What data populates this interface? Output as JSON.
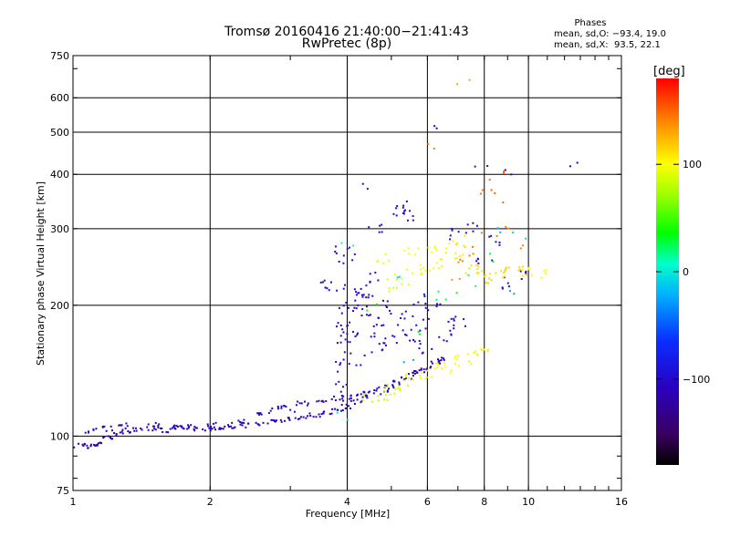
{
  "header": {
    "title_line1": "Tromsø 20160416 21:40:00−21:41:43",
    "title_line2": "RwPretec (8p)",
    "phases_title": "Phases",
    "phases_o": "mean, sd,O: −93.4, 19.0",
    "phases_x": "mean, sd,X:  93.5, 22.1"
  },
  "colorbar": {
    "unit": "[deg]",
    "ticks": [
      "100",
      "0",
      "−100"
    ],
    "tick_values": [
      100,
      0,
      -100
    ],
    "range": [
      -180,
      180
    ]
  },
  "chart_data": {
    "type": "scatter",
    "title": "Tromsø 20160416 21:40:00−21:41:43",
    "subtitle": "RwPretec (8p)",
    "xlabel": "Frequency [MHz]",
    "ylabel": "Stationary phase Virtual Height [km]",
    "xscale": "log",
    "yscale": "log",
    "xlim": [
      1,
      16
    ],
    "ylim": [
      75,
      750
    ],
    "xticks": [
      1,
      2,
      4,
      6,
      8,
      10,
      16
    ],
    "xtick_labels": [
      "1",
      "2",
      "4",
      "6",
      "8",
      "10",
      "16"
    ],
    "yticks": [
      75,
      100,
      200,
      300,
      400,
      500,
      600,
      750
    ],
    "ytick_labels": [
      "75",
      "100",
      "200",
      "300",
      "400",
      "500",
      "600",
      "750"
    ],
    "grid": true,
    "color_dimension": "phase [deg]",
    "series": [
      {
        "points": [
          [
            1.0,
            94,
            -110
          ],
          [
            1.05,
            95,
            -110
          ],
          [
            1.1,
            95,
            -110
          ],
          [
            1.15,
            96,
            -110
          ],
          [
            1.2,
            99,
            -110
          ],
          [
            1.25,
            101,
            -110
          ],
          [
            1.3,
            103,
            -110
          ],
          [
            1.4,
            104,
            -110
          ],
          [
            1.5,
            104,
            -110
          ],
          [
            1.6,
            103,
            -110
          ],
          [
            1.7,
            104,
            -110
          ],
          [
            1.8,
            105,
            -110
          ],
          [
            1.9,
            104,
            -110
          ],
          [
            2.0,
            104,
            -110
          ],
          [
            2.1,
            105,
            -110
          ],
          [
            2.2,
            105,
            -110
          ],
          [
            2.4,
            106,
            -110
          ],
          [
            2.6,
            107,
            -110
          ],
          [
            2.8,
            108,
            -110
          ],
          [
            3.0,
            109,
            -110
          ],
          [
            3.2,
            110,
            -110
          ],
          [
            3.4,
            112,
            -110
          ],
          [
            3.6,
            113,
            -110
          ],
          [
            3.8,
            115,
            -110
          ],
          [
            4.0,
            117,
            -110
          ],
          [
            4.2,
            120,
            -110
          ],
          [
            4.4,
            123,
            -110
          ],
          [
            4.6,
            126,
            -110
          ],
          [
            4.8,
            128,
            -110
          ],
          [
            5.0,
            130,
            -110
          ],
          [
            5.2,
            133,
            -110
          ],
          [
            5.4,
            136,
            -110
          ],
          [
            5.6,
            139,
            -110
          ],
          [
            5.8,
            141,
            -110
          ],
          [
            6.0,
            143,
            -110
          ],
          [
            6.2,
            148,
            -110
          ],
          [
            6.5,
            150,
            -110
          ]
        ]
      },
      {
        "points": [
          [
            1.1,
            103,
            -105
          ],
          [
            1.2,
            104,
            -105
          ],
          [
            1.3,
            106,
            -105
          ],
          [
            1.5,
            106,
            -105
          ],
          [
            1.7,
            105,
            -105
          ],
          [
            2.0,
            106,
            -105
          ],
          [
            2.3,
            108,
            -105
          ],
          [
            2.6,
            112,
            -105
          ],
          [
            2.9,
            116,
            -105
          ],
          [
            3.2,
            119,
            -105
          ],
          [
            3.5,
            121,
            -105
          ],
          [
            3.8,
            122,
            -105
          ],
          [
            4.0,
            123,
            -105
          ],
          [
            4.3,
            125,
            -105
          ]
        ]
      },
      {
        "points": [
          [
            3.9,
            130,
            -100
          ],
          [
            3.9,
            145,
            -100
          ],
          [
            3.9,
            160,
            -100
          ],
          [
            3.9,
            175,
            -100
          ],
          [
            3.95,
            185,
            -100
          ],
          [
            4.0,
            195,
            -100
          ],
          [
            4.1,
            200,
            -100
          ],
          [
            4.1,
            170,
            -100
          ],
          [
            4.2,
            210,
            -100
          ],
          [
            4.2,
            150,
            -100
          ],
          [
            4.3,
            215,
            -100
          ],
          [
            4.4,
            190,
            -100
          ],
          [
            4.5,
            205,
            -100
          ],
          [
            4.6,
            175,
            -100
          ],
          [
            4.7,
            160,
            -100
          ],
          [
            4.8,
            185,
            -100
          ],
          [
            4.9,
            200,
            -100
          ],
          [
            5.0,
            165,
            -100
          ],
          [
            5.2,
            175,
            -100
          ],
          [
            5.4,
            190,
            -100
          ],
          [
            5.6,
            170,
            -100
          ],
          [
            5.8,
            180,
            -100
          ],
          [
            6.0,
            160,
            -100
          ],
          [
            6.2,
            195,
            -100
          ],
          [
            6.5,
            170,
            -100
          ],
          [
            7.0,
            180,
            -100
          ],
          [
            5.2,
            330,
            -95
          ],
          [
            5.3,
            340,
            -95
          ],
          [
            5.4,
            320,
            -95
          ],
          [
            3.9,
            265,
            -95
          ],
          [
            4.0,
            255,
            -95
          ],
          [
            3.8,
            222,
            -95
          ],
          [
            3.5,
            222,
            -95
          ],
          [
            4.6,
            300,
            -95
          ],
          [
            6.8,
            290,
            -95
          ],
          [
            7.5,
            300,
            -95
          ],
          [
            8.0,
            250,
            -95
          ],
          [
            9.0,
            225,
            -95
          ],
          [
            9.5,
            235,
            -95
          ],
          [
            8.5,
            280,
            -95
          ],
          [
            3.0,
            115,
            -95
          ],
          [
            2.7,
            112,
            -95
          ],
          [
            4.5,
            230,
            -95
          ],
          [
            6.7,
            185,
            -95
          ],
          [
            5.8,
            205,
            -95
          ]
        ]
      },
      {
        "points": [
          [
            4.5,
            122,
            80
          ],
          [
            4.8,
            125,
            85
          ],
          [
            5.0,
            128,
            85
          ],
          [
            5.3,
            131,
            90
          ],
          [
            5.6,
            134,
            90
          ],
          [
            5.9,
            137,
            95
          ],
          [
            6.2,
            140,
            95
          ],
          [
            6.5,
            144,
            100
          ],
          [
            6.8,
            147,
            100
          ],
          [
            7.2,
            150,
            100
          ],
          [
            7.6,
            153,
            105
          ],
          [
            8.0,
            156,
            105
          ],
          [
            5.0,
            222,
            90
          ],
          [
            5.3,
            228,
            95
          ],
          [
            5.6,
            234,
            95
          ],
          [
            6.0,
            240,
            100
          ],
          [
            6.5,
            250,
            105
          ],
          [
            7.0,
            255,
            105
          ],
          [
            7.5,
            245,
            110
          ],
          [
            8.0,
            240,
            110
          ],
          [
            8.5,
            235,
            110
          ],
          [
            9.0,
            238,
            115
          ],
          [
            9.5,
            242,
            110
          ],
          [
            10.0,
            240,
            105
          ],
          [
            10.5,
            236,
            100
          ],
          [
            6.2,
            265,
            100
          ],
          [
            6.8,
            272,
            105
          ],
          [
            7.2,
            280,
            110
          ],
          [
            4.8,
            255,
            95
          ],
          [
            5.5,
            262,
            100
          ],
          [
            8.2,
            225,
            115
          ]
        ]
      },
      {
        "points": [
          [
            7.0,
            250,
            140
          ],
          [
            7.3,
            255,
            140
          ],
          [
            7.7,
            265,
            145
          ],
          [
            8.2,
            285,
            145
          ],
          [
            8.7,
            300,
            140
          ],
          [
            6.8,
            230,
            135
          ],
          [
            8.0,
            380,
            150
          ],
          [
            8.9,
            395,
            150
          ],
          [
            7.8,
            370,
            145
          ],
          [
            7.2,
            655,
            130
          ],
          [
            6.0,
            470,
            140
          ],
          [
            9.6,
            275,
            140
          ],
          [
            8.6,
            350,
            150
          ]
        ]
      },
      {
        "points": [
          [
            4.0,
            272,
            10
          ],
          [
            6.2,
            210,
            20
          ],
          [
            8.9,
            300,
            -20
          ],
          [
            9.6,
            290,
            30
          ],
          [
            5.1,
            230,
            -10
          ],
          [
            6.8,
            210,
            30
          ],
          [
            8.2,
            260,
            25
          ],
          [
            7.4,
            228,
            20
          ],
          [
            5.9,
            175,
            30
          ],
          [
            4.6,
            195,
            40
          ],
          [
            9.3,
            215,
            -30
          ],
          [
            3.9,
            110,
            0
          ],
          [
            5.4,
            145,
            -25
          ]
        ]
      },
      {
        "points": [
          [
            6.3,
            520,
            -100
          ],
          [
            12.5,
            425,
            -110
          ],
          [
            4.3,
            370,
            -100
          ],
          [
            7.9,
            405,
            -95
          ],
          [
            9.0,
            410,
            -100
          ]
        ]
      }
    ]
  }
}
